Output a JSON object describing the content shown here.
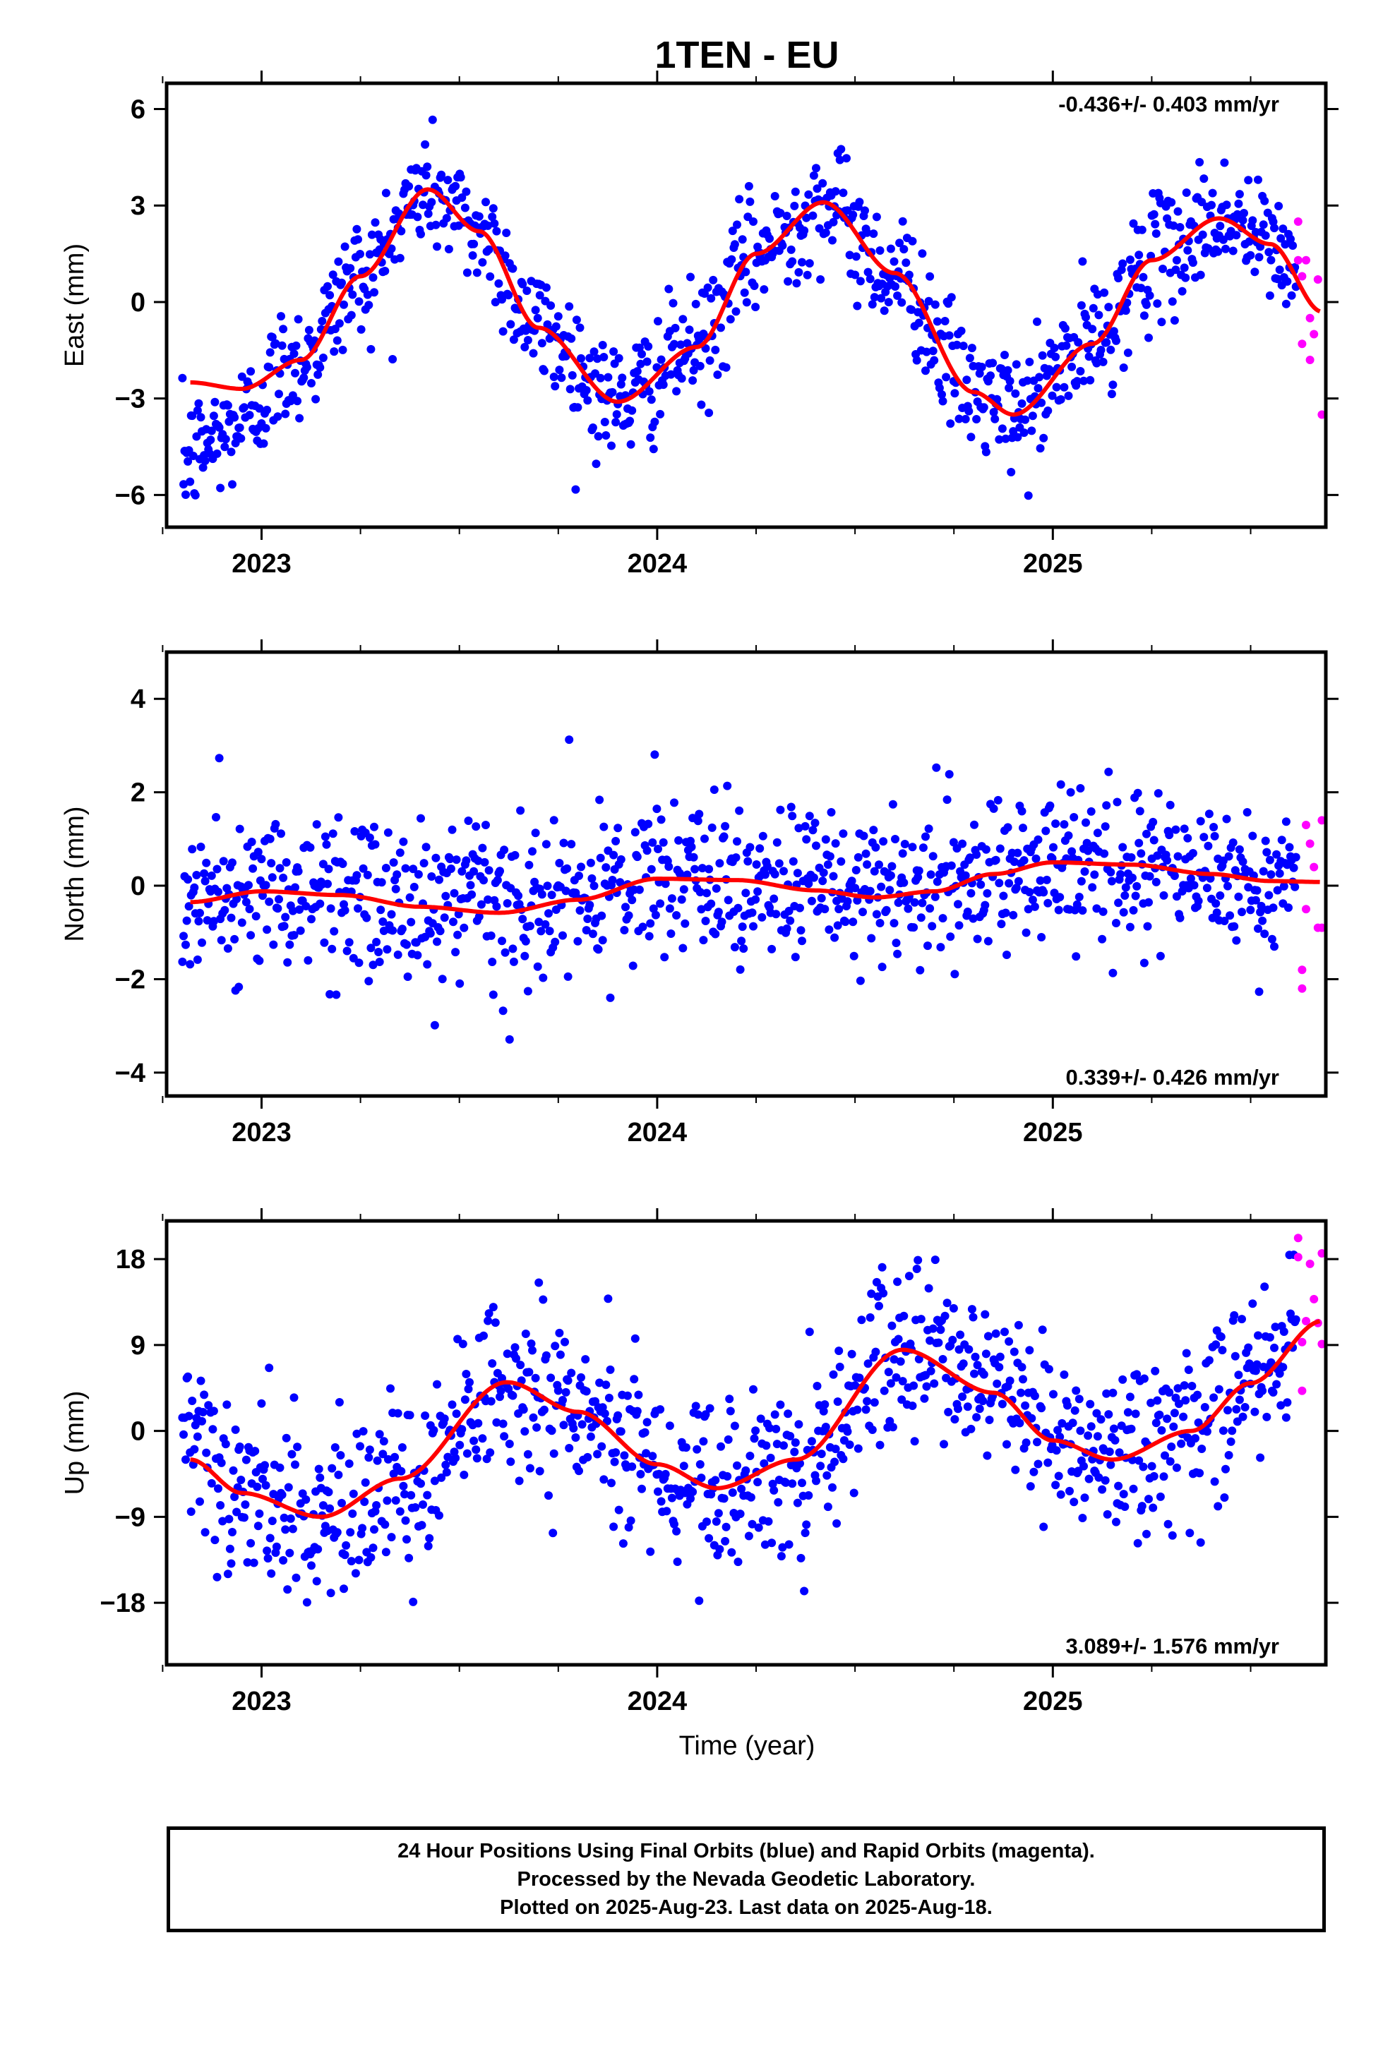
{
  "chart_data": {
    "type": "scatter",
    "title": "1TEN - EU",
    "xlabel": "Time (year)",
    "x_ticks": [
      "2023",
      "2024",
      "2025"
    ],
    "xlim": [
      2022.76,
      2025.69
    ],
    "colors": {
      "final_orbits": "#0000ff",
      "rapid_orbits": "#ff00ff",
      "model_fit": "#ff0000"
    },
    "panels": [
      {
        "name": "east",
        "ylabel": "East (mm)",
        "ylim": [
          -7,
          6.8
        ],
        "y_ticks": [
          6,
          3,
          0,
          -3,
          -6
        ],
        "y_tick_labels": [
          "6",
          "3",
          "0",
          "−3",
          "−6"
        ],
        "velocity": "-0.436+/- 0.403 mm/yr",
        "velocity_position": "top-right",
        "fit": {
          "offset": -0.15,
          "trend": -0.436,
          "t0": 2024.2,
          "annual_amplitude": 3.1,
          "annual_peak": 2023.42,
          "noise": 0.95,
          "start_offset": [
            -2.3,
            2022.82,
            2023.05
          ]
        },
        "fit_points": [
          [
            2022.82,
            -2.5
          ],
          [
            2022.95,
            -2.7
          ],
          [
            2023.1,
            -1.8
          ],
          [
            2023.25,
            0.8
          ],
          [
            2023.42,
            3.5
          ],
          [
            2023.55,
            2.2
          ],
          [
            2023.7,
            -0.8
          ],
          [
            2023.9,
            -3.1
          ],
          [
            2024.1,
            -1.4
          ],
          [
            2024.25,
            1.5
          ],
          [
            2024.42,
            3.1
          ],
          [
            2024.6,
            0.9
          ],
          [
            2024.8,
            -2.8
          ],
          [
            2024.9,
            -3.5
          ],
          [
            2025.1,
            -1.3
          ],
          [
            2025.25,
            1.3
          ],
          [
            2025.42,
            2.6
          ],
          [
            2025.55,
            1.8
          ],
          [
            2025.68,
            -0.3
          ]
        ],
        "rapid_points": [
          [
            2025.62,
            2.5
          ],
          [
            2025.62,
            1.3
          ],
          [
            2025.63,
            0.8
          ],
          [
            2025.63,
            -1.3
          ],
          [
            2025.64,
            1.3
          ],
          [
            2025.65,
            -1.8
          ],
          [
            2025.65,
            -0.5
          ],
          [
            2025.66,
            -1.0
          ],
          [
            2025.67,
            0.7
          ],
          [
            2025.68,
            -3.5
          ]
        ]
      },
      {
        "name": "north",
        "ylabel": "North (mm)",
        "ylim": [
          -4.5,
          5
        ],
        "y_ticks": [
          4,
          2,
          0,
          -2,
          -4
        ],
        "y_tick_labels": [
          "4",
          "2",
          "0",
          "−2",
          "−4"
        ],
        "velocity": "0.339+/- 0.426 mm/yr",
        "velocity_position": "bottom-right",
        "fit": {
          "offset": -0.05,
          "trend": 0.339,
          "t0": 2024.2,
          "annual_amplitude": 0.25,
          "annual_peak": 2023.1,
          "noise": 0.85,
          "start_offset": [
            0,
            2022.82,
            2022.9
          ]
        },
        "fit_points": [
          [
            2022.82,
            -0.35
          ],
          [
            2023.0,
            -0.12
          ],
          [
            2023.2,
            -0.2
          ],
          [
            2023.4,
            -0.45
          ],
          [
            2023.6,
            -0.58
          ],
          [
            2023.8,
            -0.3
          ],
          [
            2024.0,
            0.15
          ],
          [
            2024.2,
            0.12
          ],
          [
            2024.4,
            -0.1
          ],
          [
            2024.55,
            -0.25
          ],
          [
            2024.7,
            -0.12
          ],
          [
            2024.85,
            0.25
          ],
          [
            2025.0,
            0.5
          ],
          [
            2025.2,
            0.45
          ],
          [
            2025.4,
            0.25
          ],
          [
            2025.55,
            0.1
          ],
          [
            2025.68,
            0.08
          ]
        ],
        "rapid_points": [
          [
            2025.63,
            -1.8
          ],
          [
            2025.63,
            -2.2
          ],
          [
            2025.64,
            1.3
          ],
          [
            2025.64,
            -0.5
          ],
          [
            2025.65,
            0.9
          ],
          [
            2025.66,
            0.4
          ],
          [
            2025.67,
            -0.9
          ],
          [
            2025.68,
            1.4
          ],
          [
            2025.68,
            -0.9
          ]
        ]
      },
      {
        "name": "up",
        "ylabel": "Up (mm)",
        "ylim": [
          -24.5,
          22
        ],
        "y_ticks": [
          18,
          9,
          0,
          -9,
          -18
        ],
        "y_tick_labels": [
          "18",
          "9",
          "0",
          "−9",
          "−18"
        ],
        "velocity": "3.089+/- 1.576 mm/yr",
        "velocity_position": "bottom-right",
        "fit": {
          "offset": 0.3,
          "trend": 3.089,
          "t0": 2024.2,
          "annual_amplitude": 6.2,
          "annual_peak": 2023.63,
          "noise": 4.6,
          "start_offset": [
            0,
            2022.82,
            2022.9
          ]
        },
        "fit_points": [
          [
            2022.82,
            -3
          ],
          [
            2022.95,
            -6.5
          ],
          [
            2023.15,
            -9
          ],
          [
            2023.35,
            -5
          ],
          [
            2023.62,
            5.1
          ],
          [
            2023.8,
            2
          ],
          [
            2024.0,
            -3.5
          ],
          [
            2024.15,
            -6
          ],
          [
            2024.35,
            -3
          ],
          [
            2024.62,
            8.5
          ],
          [
            2024.85,
            4
          ],
          [
            2025.0,
            -1
          ],
          [
            2025.15,
            -3
          ],
          [
            2025.35,
            0
          ],
          [
            2025.5,
            5
          ],
          [
            2025.68,
            11.5
          ]
        ],
        "rapid_points": [
          [
            2025.62,
            20.2
          ],
          [
            2025.62,
            18.2
          ],
          [
            2025.63,
            9.3
          ],
          [
            2025.63,
            4.2
          ],
          [
            2025.64,
            11.5
          ],
          [
            2025.65,
            17.5
          ],
          [
            2025.66,
            13.8
          ],
          [
            2025.67,
            11.3
          ],
          [
            2025.68,
            18.6
          ],
          [
            2025.68,
            9.1
          ]
        ]
      }
    ]
  },
  "footer": {
    "line1": "24 Hour Positions Using Final Orbits (blue) and Rapid Orbits (magenta).",
    "line2": "Processed by the Nevada Geodetic Laboratory.",
    "line3": "Plotted on 2025-Aug-23. Last data on 2025-Aug-18."
  }
}
